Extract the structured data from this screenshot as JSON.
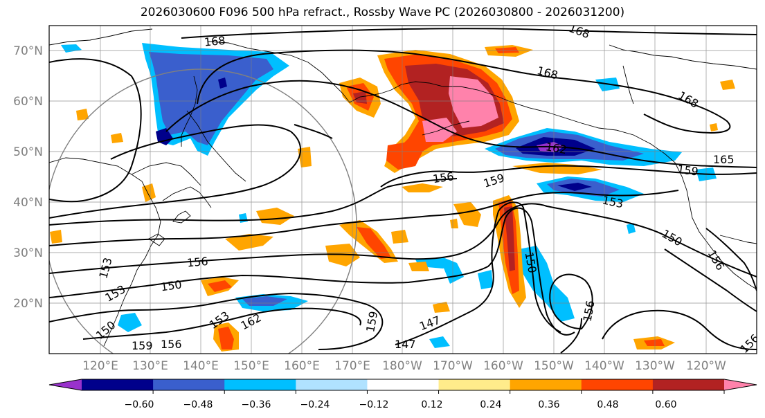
{
  "title": "2026030600 F096 500 hPa refract., Rossby Wave PC (2026030800 - 2026031200)",
  "lat_labels": [
    "20°N",
    "30°N",
    "40°N",
    "50°N",
    "60°N",
    "70°N"
  ],
  "lon_labels": [
    "120°E",
    "130°E",
    "140°E",
    "150°E",
    "160°E",
    "170°E",
    "180°W",
    "170°W",
    "160°W",
    "150°W",
    "140°W",
    "130°W",
    "120°W"
  ],
  "colorbar": {
    "tick_labels": [
      "−0.60",
      "−0.48",
      "−0.36",
      "−0.24",
      "−0.12",
      "0.12",
      "0.24",
      "0.36",
      "0.48",
      "0.60"
    ],
    "colors": [
      "#9932cc",
      "#00008b",
      "#3a5fcd",
      "#00bfff",
      "#b0e2ff",
      "#ffffff",
      "#ffec8b",
      "#ffa500",
      "#ff4500",
      "#b22222",
      "#ff82ab"
    ]
  },
  "contour_labels": [
    {
      "text": "168"
    },
    {
      "text": "168"
    },
    {
      "text": "168"
    },
    {
      "text": "168"
    },
    {
      "text": "162"
    },
    {
      "text": "165"
    },
    {
      "text": "159"
    },
    {
      "text": "159"
    },
    {
      "text": "156"
    },
    {
      "text": "153"
    },
    {
      "text": "150"
    },
    {
      "text": "150"
    },
    {
      "text": "156"
    },
    {
      "text": "150"
    },
    {
      "text": "153"
    },
    {
      "text": "153"
    },
    {
      "text": "162"
    },
    {
      "text": "159"
    },
    {
      "text": "147"
    },
    {
      "text": "147"
    },
    {
      "text": "156"
    },
    {
      "text": "156"
    },
    {
      "text": "150"
    },
    {
      "text": "159"
    },
    {
      "text": "156"
    },
    {
      "text": "156"
    },
    {
      "text": "153"
    }
  ]
}
